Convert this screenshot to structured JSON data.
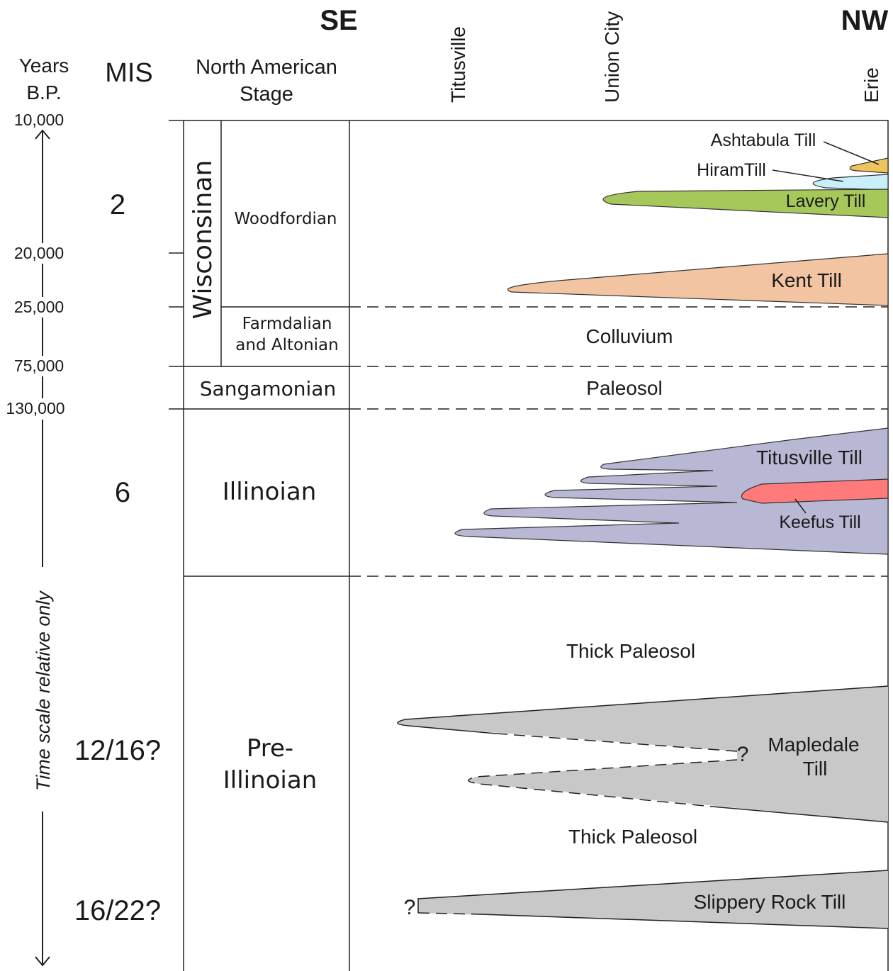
{
  "header": {
    "direction_left": "SE",
    "direction_right": "NW",
    "years_label": [
      "Years",
      "B.P."
    ],
    "mis_label": "MIS",
    "stage_label": [
      "North  American",
      "Stage"
    ],
    "locations": [
      "Titusville",
      "Union City",
      "Erie"
    ]
  },
  "years": [
    "10,000",
    "20,000",
    "25,000",
    "75,000",
    "130,000"
  ],
  "time_note": "Time scale relative only",
  "mis": [
    "2",
    "6",
    "12/16?",
    "16/22?"
  ],
  "stages": {
    "wisconsinan": "Wisconsinan",
    "woodfordian": "Woodfordian",
    "farmdalian": [
      "Farmdalian",
      "and Altonian"
    ],
    "sangamonian": "Sangamonian",
    "illinoian": "Illinoian",
    "pre_illinoian": [
      "Pre-",
      "Illinoian"
    ]
  },
  "units": {
    "ashtabula": "Ashtabula Till",
    "hiram": "HiramTill",
    "lavery": "Lavery Till",
    "kent": "Kent Till",
    "colluvium": "Colluvium",
    "paleosol": "Paleosol",
    "titusville": "Titusville Till",
    "keefus": "Keefus Till",
    "thick_paleosol_upper": "Thick Paleosol",
    "mapledale": [
      "Mapledale",
      "Till"
    ],
    "mapledale_query": "?",
    "thick_paleosol_lower": "Thick Paleosol",
    "slippery_rock": "Slippery Rock Till",
    "slippery_rock_query": "?"
  }
}
